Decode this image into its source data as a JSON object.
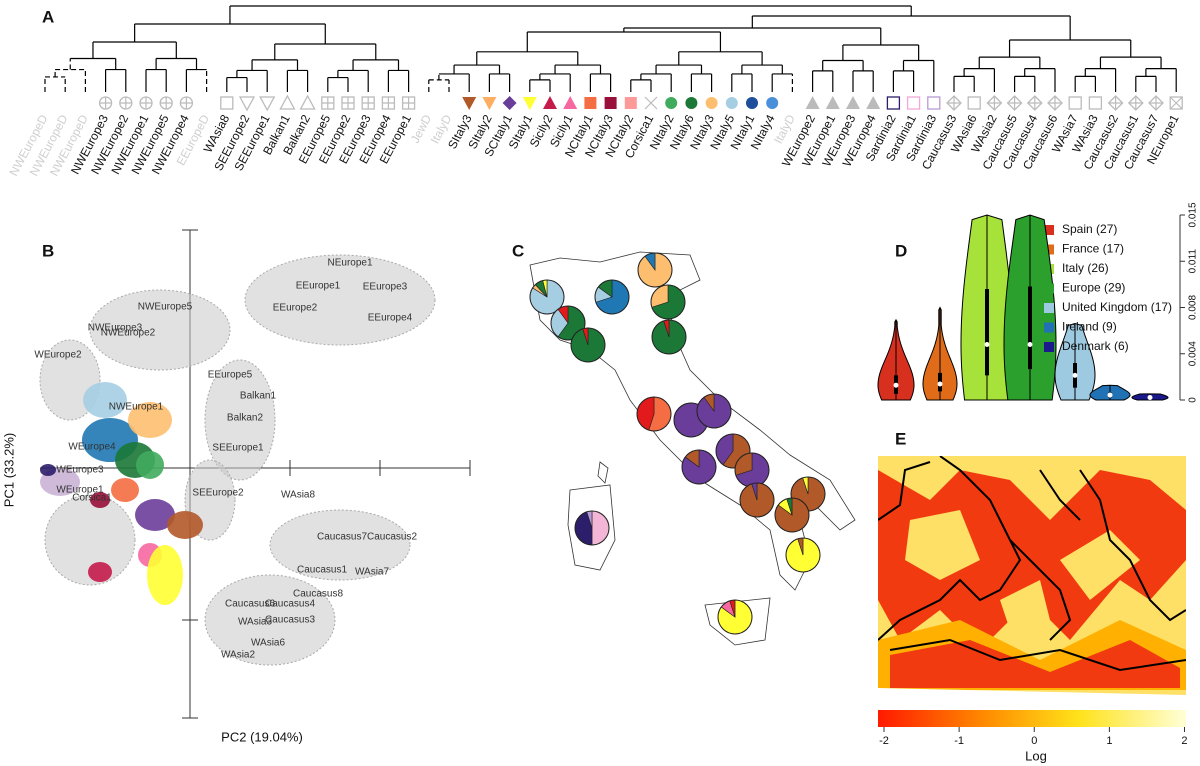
{
  "chart_data": [
    {
      "type": "dendrogram",
      "label": "A",
      "leaves": [
        {
          "label": "NWEuropeD",
          "color": "#cccccc",
          "symbol": "none"
        },
        {
          "label": "NWEuropeD",
          "color": "#cccccc",
          "symbol": "none"
        },
        {
          "label": "NWEuropeD",
          "color": "#cccccc",
          "symbol": "none"
        },
        {
          "label": "NWEurope3",
          "color": "#bbbbbb",
          "symbol": "open-circleplus"
        },
        {
          "label": "NWEurope2",
          "color": "#bbbbbb",
          "symbol": "open-circleplus"
        },
        {
          "label": "NWEurope1",
          "color": "#bbbbbb",
          "symbol": "open-circleplus"
        },
        {
          "label": "NWEurope5",
          "color": "#bbbbbb",
          "symbol": "open-circleplus"
        },
        {
          "label": "NWEurope4",
          "color": "#bbbbbb",
          "symbol": "open-circleplus"
        },
        {
          "label": "EEuropeD",
          "color": "#cccccc",
          "symbol": "none"
        },
        {
          "label": "WAsia8",
          "color": "#bbbbbb",
          "symbol": "open-square"
        },
        {
          "label": "SEEurope2",
          "color": "#bbbbbb",
          "symbol": "open-tridown"
        },
        {
          "label": "SEEurope1",
          "color": "#bbbbbb",
          "symbol": "open-tridown"
        },
        {
          "label": "Balkan1",
          "color": "#bbbbbb",
          "symbol": "open-triup"
        },
        {
          "label": "Balkan2",
          "color": "#bbbbbb",
          "symbol": "open-triup"
        },
        {
          "label": "EEurope5",
          "color": "#bbbbbb",
          "symbol": "open-boxplus"
        },
        {
          "label": "EEurope2",
          "color": "#bbbbbb",
          "symbol": "open-boxplus"
        },
        {
          "label": "EEurope3",
          "color": "#bbbbbb",
          "symbol": "open-boxplus"
        },
        {
          "label": "EEurope4",
          "color": "#bbbbbb",
          "symbol": "open-boxplus"
        },
        {
          "label": "EEurope1",
          "color": "#bbbbbb",
          "symbol": "open-boxplus"
        },
        {
          "label": "JewD",
          "color": "#cccccc",
          "symbol": "none"
        },
        {
          "label": "ItalyD",
          "color": "#cccccc",
          "symbol": "none"
        },
        {
          "label": "SItaly3",
          "color": "#b15928",
          "symbol": "tridown"
        },
        {
          "label": "SItaly2",
          "color": "#fdae61",
          "symbol": "tridown"
        },
        {
          "label": "SCItaly1",
          "color": "#6a3d9a",
          "symbol": "diamond"
        },
        {
          "label": "SItaly1",
          "color": "#ffff33",
          "symbol": "tridown"
        },
        {
          "label": "Sicily2",
          "color": "#c51b4b",
          "symbol": "triup"
        },
        {
          "label": "Sicily1",
          "color": "#f768a1",
          "symbol": "triup"
        },
        {
          "label": "NCItaly1",
          "color": "#f46d43",
          "symbol": "square"
        },
        {
          "label": "NCItaly3",
          "color": "#99103a",
          "symbol": "square"
        },
        {
          "label": "NCItaly2",
          "color": "#fb9a99",
          "symbol": "square"
        },
        {
          "label": "Corsica1",
          "color": "#bbbbbb",
          "symbol": "open-x"
        },
        {
          "label": "NItaly2",
          "color": "#41ab5d",
          "symbol": "circle"
        },
        {
          "label": "NItaly6",
          "color": "#1b7837",
          "symbol": "circle"
        },
        {
          "label": "NItaly3",
          "color": "#fdbf6f",
          "symbol": "circle"
        },
        {
          "label": "NItaly5",
          "color": "#a6cee3",
          "symbol": "circle"
        },
        {
          "label": "NItaly1",
          "color": "#1f4e9a",
          "symbol": "circle"
        },
        {
          "label": "NItaly4",
          "color": "#4a90d9",
          "symbol": "circle"
        },
        {
          "label": "ItalyD",
          "color": "#cccccc",
          "symbol": "none"
        },
        {
          "label": "WEurope2",
          "color": "#bbbbbb",
          "symbol": "triup"
        },
        {
          "label": "WEurope1",
          "color": "#bbbbbb",
          "symbol": "triup"
        },
        {
          "label": "WEurope3",
          "color": "#bbbbbb",
          "symbol": "triup"
        },
        {
          "label": "WEurope4",
          "color": "#bbbbbb",
          "symbol": "triup"
        },
        {
          "label": "Sardinia2",
          "color": "#2c1e6a",
          "symbol": "open-square"
        },
        {
          "label": "Sardinia1",
          "color": "#f4a6d7",
          "symbol": "open-square"
        },
        {
          "label": "Sardinia3",
          "color": "#b89ad6",
          "symbol": "open-square"
        },
        {
          "label": "Caucasus3",
          "color": "#bbbbbb",
          "symbol": "open-diamondplus"
        },
        {
          "label": "WAsia6",
          "color": "#bbbbbb",
          "symbol": "open-square"
        },
        {
          "label": "WAsia2",
          "color": "#bbbbbb",
          "symbol": "open-diamondplus"
        },
        {
          "label": "Caucasus5",
          "color": "#bbbbbb",
          "symbol": "open-diamondplus"
        },
        {
          "label": "Caucasus4",
          "color": "#bbbbbb",
          "symbol": "open-diamondplus"
        },
        {
          "label": "Caucasus6",
          "color": "#bbbbbb",
          "symbol": "open-diamondplus"
        },
        {
          "label": "WAsia7",
          "color": "#bbbbbb",
          "symbol": "open-square"
        },
        {
          "label": "WAsia3",
          "color": "#bbbbbb",
          "symbol": "open-square"
        },
        {
          "label": "Caucasus2",
          "color": "#bbbbbb",
          "symbol": "open-diamondplus"
        },
        {
          "label": "Caucasus1",
          "color": "#bbbbbb",
          "symbol": "open-diamondplus"
        },
        {
          "label": "Caucasus7",
          "color": "#bbbbbb",
          "symbol": "open-diamondplus"
        },
        {
          "label": "NEurope1",
          "color": "#bbbbbb",
          "symbol": "open-boxx"
        }
      ]
    },
    {
      "type": "scatter",
      "label": "B",
      "xlabel": "PC2 (19.04%)",
      "ylabel": "PC1 (33.2%)",
      "xlim": [
        -1.5,
        2.8
      ],
      "ylim": [
        -2.5,
        2.38
      ],
      "clusters": [
        {
          "color": "#c8c8c8",
          "x": -0.3,
          "y": 1.38
        },
        {
          "color": "#c8c8c8",
          "x": 1.5,
          "y": 1.68
        },
        {
          "color": "#c8c8c8",
          "x": 0.5,
          "y": 0.48
        },
        {
          "color": "#c8c8c8",
          "x": 0.2,
          "y": -0.32
        },
        {
          "color": "#c8c8c8",
          "x": 1.5,
          "y": -0.77
        },
        {
          "color": "#c8c8c8",
          "x": 0.8,
          "y": -1.52
        },
        {
          "color": "#c8c8c8",
          "x": -1.0,
          "y": -0.72
        },
        {
          "color": "#c8c8c8",
          "x": -1.2,
          "y": 0.88
        },
        {
          "color": "#a6cee3",
          "x": -0.85,
          "y": 0.68
        },
        {
          "color": "#1f78b4",
          "x": -0.8,
          "y": 0.28
        },
        {
          "color": "#fdbf6f",
          "x": -0.4,
          "y": 0.48
        },
        {
          "color": "#1b7837",
          "x": -0.55,
          "y": 0.08
        },
        {
          "color": "#41ab5d",
          "x": -0.4,
          "y": 0.03
        },
        {
          "color": "#cab2d6",
          "x": -1.3,
          "y": -0.14
        },
        {
          "color": "#f46d43",
          "x": -0.65,
          "y": -0.22
        },
        {
          "color": "#99103a",
          "x": -0.9,
          "y": -0.32
        },
        {
          "color": "#6a3d9a",
          "x": -0.35,
          "y": -0.47
        },
        {
          "color": "#b15928",
          "x": -0.05,
          "y": -0.57
        },
        {
          "color": "#f768a1",
          "x": -0.4,
          "y": -0.87
        },
        {
          "color": "#ffff33",
          "x": -0.25,
          "y": -1.07
        },
        {
          "color": "#c51b4b",
          "x": -0.9,
          "y": -1.04
        },
        {
          "color": "#2c1e6a",
          "x": -1.42,
          "y": -0.02
        }
      ],
      "annotations": [
        {
          "text": "NEurope1",
          "x": 1.6,
          "y": 2.05
        },
        {
          "text": "EEurope1",
          "x": 1.28,
          "y": 1.82
        },
        {
          "text": "EEurope3",
          "x": 1.95,
          "y": 1.81
        },
        {
          "text": "EEurope4",
          "x": 2.0,
          "y": 1.5
        },
        {
          "text": "EEurope2",
          "x": 1.05,
          "y": 1.6
        },
        {
          "text": "NWEurope5",
          "x": -0.25,
          "y": 1.61
        },
        {
          "text": "NWEurope3",
          "x": -0.75,
          "y": 1.4
        },
        {
          "text": "NWEurope2",
          "x": -0.62,
          "y": 1.35
        },
        {
          "text": "WEurope2",
          "x": -1.32,
          "y": 1.13
        },
        {
          "text": "EEurope5",
          "x": 0.4,
          "y": 0.93
        },
        {
          "text": "Balkan1",
          "x": 0.68,
          "y": 0.72
        },
        {
          "text": "Balkan2",
          "x": 0.55,
          "y": 0.5
        },
        {
          "text": "NWEurope1",
          "x": -0.54,
          "y": 0.61
        },
        {
          "text": "WEurope4",
          "x": -0.98,
          "y": 0.21
        },
        {
          "text": "SEEurope1",
          "x": 0.48,
          "y": 0.2
        },
        {
          "text": "WEurope3",
          "x": -1.1,
          "y": -0.02
        },
        {
          "text": "WEurope1",
          "x": -1.1,
          "y": -0.22
        },
        {
          "text": "Corsica1",
          "x": -0.98,
          "y": -0.3
        },
        {
          "text": "SEEurope2",
          "x": 0.28,
          "y": -0.25
        },
        {
          "text": "WAsia8",
          "x": 1.08,
          "y": -0.27
        },
        {
          "text": "Caucasus7",
          "x": 1.52,
          "y": -0.69
        },
        {
          "text": "Caucasus2",
          "x": 2.02,
          "y": -0.69
        },
        {
          "text": "Caucasus1",
          "x": 1.32,
          "y": -1.02
        },
        {
          "text": "WAsia7",
          "x": 1.82,
          "y": -1.04
        },
        {
          "text": "Caucasus8",
          "x": 1.28,
          "y": -1.26
        },
        {
          "text": "Caucasus6",
          "x": 0.6,
          "y": -1.36
        },
        {
          "text": "Caucasus4",
          "x": 1.0,
          "y": -1.36
        },
        {
          "text": "Caucasus3",
          "x": 1.0,
          "y": -1.52
        },
        {
          "text": "WAsia3",
          "x": 0.65,
          "y": -1.54
        },
        {
          "text": "WAsia6",
          "x": 0.78,
          "y": -1.75
        },
        {
          "text": "WAsia2",
          "x": 0.48,
          "y": -1.87
        }
      ]
    },
    {
      "type": "pie-map",
      "label": "C",
      "pies": [
        {
          "colors": [
            "#a6cee3",
            "#fdbf6f",
            "#1b7837",
            "#ffff33"
          ],
          "values": [
            84,
            4,
            8,
            4
          ]
        },
        {
          "colors": [
            "#1f78b4",
            "#a6cee3",
            "#1b7837"
          ],
          "values": [
            70,
            15,
            15
          ]
        },
        {
          "colors": [
            "#fdbf6f",
            "#1f78b4"
          ],
          "values": [
            90,
            10
          ]
        },
        {
          "colors": [
            "#1b7837",
            "#fdbf6f"
          ],
          "values": [
            70,
            30
          ]
        },
        {
          "colors": [
            "#1b7837",
            "#a6cee3",
            "#e31a1c"
          ],
          "values": [
            60,
            30,
            10
          ]
        },
        {
          "colors": [
            "#1b7837",
            "#e31a1c"
          ],
          "values": [
            95,
            5
          ]
        },
        {
          "colors": [
            "#1b7837",
            "#e31a1c"
          ],
          "values": [
            95,
            5
          ]
        },
        {
          "colors": [
            "#f46d43",
            "#e31a1c"
          ],
          "values": [
            55,
            45
          ]
        },
        {
          "colors": [
            "#6a3d9a"
          ],
          "values": [
            100
          ]
        },
        {
          "colors": [
            "#6a3d9a",
            "#b15928"
          ],
          "values": [
            90,
            10
          ]
        },
        {
          "colors": [
            "#b15928",
            "#6a3d9a"
          ],
          "values": [
            60,
            40
          ]
        },
        {
          "colors": [
            "#6a3d9a",
            "#b15928"
          ],
          "values": [
            85,
            15
          ]
        },
        {
          "colors": [
            "#6a3d9a",
            "#b15928"
          ],
          "values": [
            70,
            30
          ]
        },
        {
          "colors": [
            "#b15928",
            "#ffff33"
          ],
          "values": [
            95,
            5
          ]
        },
        {
          "colors": [
            "#b15928",
            "#6a3d9a"
          ],
          "values": [
            95,
            5
          ]
        },
        {
          "colors": [
            "#b15928",
            "#ffff33",
            "#1b7837"
          ],
          "values": [
            85,
            10,
            5
          ]
        },
        {
          "colors": [
            "#f4b6d7",
            "#2c1e6a",
            "#b89ad6"
          ],
          "values": [
            50,
            45,
            5
          ]
        },
        {
          "colors": [
            "#ffff33",
            "#b15928"
          ],
          "values": [
            95,
            5
          ]
        },
        {
          "colors": [
            "#ffff33",
            "#f768a1",
            "#e31a1c"
          ],
          "values": [
            85,
            10,
            5
          ]
        }
      ]
    },
    {
      "type": "violin",
      "label": "D",
      "ylim": [
        0,
        0.015
      ],
      "yticks": [
        0,
        {
          "value": 0.00375,
          "label": "0.004"
        },
        {
          "value": 0.0075,
          "label": "0.008"
        },
        {
          "value": 0.01125,
          "label": "0.011"
        },
        0.015
      ],
      "series": [
        {
          "name": "Spain (27)",
          "color": "#d7301f",
          "min": 0,
          "q1": 0.0005,
          "median": 0.0012,
          "q3": 0.002,
          "max": 0.0065
        },
        {
          "name": "France (17)",
          "color": "#e06c1a",
          "min": 0,
          "q1": 0.0007,
          "median": 0.0013,
          "q3": 0.0022,
          "max": 0.0075
        },
        {
          "name": "Italy (26)",
          "color": "#a6e23a",
          "min": 0,
          "q1": 0.002,
          "median": 0.0045,
          "q3": 0.009,
          "max": 0.015
        },
        {
          "name": "Europe (29)",
          "color": "#2ca02c",
          "min": 0,
          "q1": 0.0025,
          "median": 0.0045,
          "q3": 0.0092,
          "max": 0.015
        },
        {
          "name": "United Kingdom (17)",
          "color": "#9ecae1",
          "min": 0,
          "q1": 0.001,
          "median": 0.002,
          "q3": 0.003,
          "max": 0.0062
        },
        {
          "name": "Ireland (9)",
          "color": "#2171b5",
          "min": 0,
          "q1": 0.0002,
          "median": 0.0004,
          "q3": 0.0006,
          "max": 0.0012
        },
        {
          "name": "Denmark (6)",
          "color": "#1a1a8c",
          "min": 0,
          "q1": 0.0001,
          "median": 0.0002,
          "q3": 0.0003,
          "max": 0.0005
        }
      ]
    },
    {
      "type": "heatmap",
      "label": "E",
      "colorbar_label": "Log",
      "clim": [
        -2.08,
        2.02
      ],
      "cticks": [
        -2,
        -1,
        0,
        1,
        2
      ]
    }
  ]
}
